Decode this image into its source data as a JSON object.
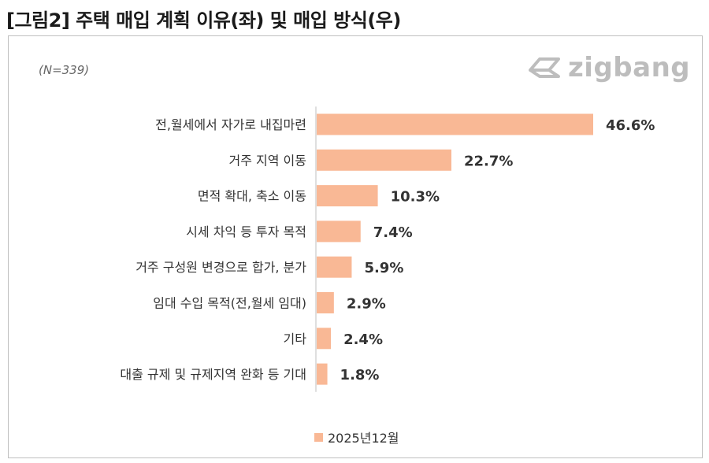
{
  "figure": {
    "title": "[그림2] 주택 매입 계획 이유(좌) 및 매입 방식(우)"
  },
  "panel": {
    "sample_note": "(N=339)",
    "brand_logo_text": "zigbang"
  },
  "colors": {
    "bar": "#F9B895",
    "axis": "#BFBFBF",
    "label_text": "#333333"
  },
  "chart_data": {
    "type": "bar",
    "orientation": "horizontal",
    "categories": [
      "전,월세에서 자가로 내집마련",
      "거주 지역 이동",
      "면적 확대, 축소 이동",
      "시세 차익 등 투자 목적",
      "거주 구성원 변경으로 합가, 분가",
      "임대 수입 목적(전,월세 임대)",
      "기타",
      "대출 규제 및 규제지역 완화 등 기대"
    ],
    "series": [
      {
        "name": "2025년12월",
        "values": [
          46.6,
          22.7,
          10.3,
          7.4,
          5.9,
          2.9,
          2.4,
          1.8
        ],
        "labels": [
          "46.6%",
          "22.7%",
          "10.3%",
          "7.4%",
          "5.9%",
          "2.9%",
          "2.4%",
          "1.8%"
        ]
      }
    ],
    "xlim": [
      0,
      50
    ],
    "unit": "%",
    "grid": false,
    "legend_position": "bottom"
  }
}
